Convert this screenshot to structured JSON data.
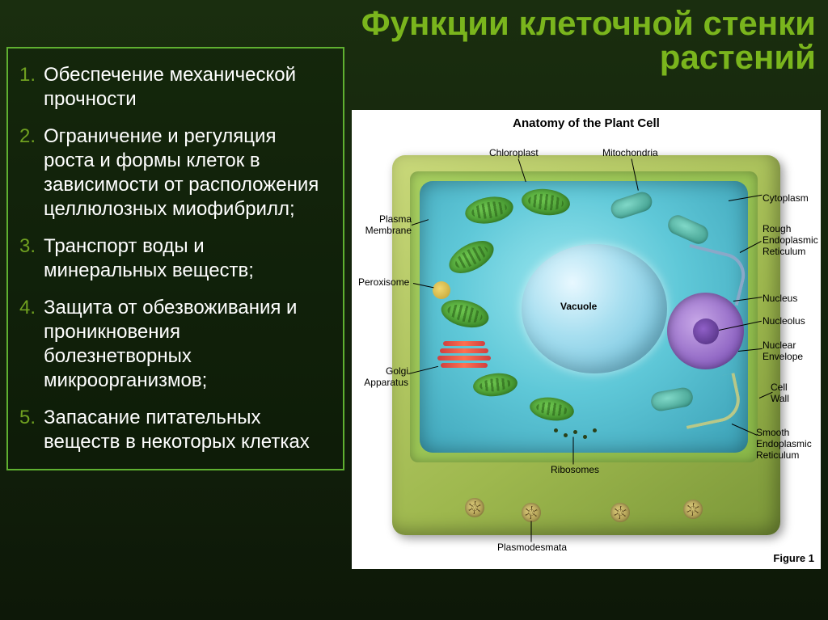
{
  "title": {
    "line1": "Функции клеточной стенки",
    "line2": "растений"
  },
  "list": [
    {
      "num": "1.",
      "text": "Обеспечение механической прочности"
    },
    {
      "num": "2.",
      "text": "Ограничение и регуляция роста и формы клеток в зависимости от расположения целлюлозных миофибрилл;"
    },
    {
      "num": "3.",
      "text": "Транспорт воды и минеральных веществ;"
    },
    {
      "num": "4.",
      "text": "Защита от обезвоживания и проникновения болезнетворных микроорганизмов;"
    },
    {
      "num": "5.",
      "text": "Запасание питательных веществ в некоторых клетках"
    }
  ],
  "diagram": {
    "title": "Anatomy of the Plant Cell",
    "figure_label": "Figure 1",
    "labels": {
      "chloroplast": "Chloroplast",
      "mitochondria": "Mitochondria",
      "plasma_membrane": "Plasma\nMembrane",
      "peroxisome": "Peroxisome",
      "golgi": "Golgi\nApparatus",
      "vacuole": "Vacuole",
      "ribosomes": "Ribosomes",
      "plasmodesmata": "Plasmodesmata",
      "cytoplasm": "Cytoplasm",
      "rough_er": "Rough\nEndoplasmic\nReticulum",
      "nucleus": "Nucleus",
      "nucleolus": "Nucleolus",
      "nuclear_envelope": "Nuclear\nEnvelope",
      "cell_wall": "Cell\nWall",
      "smooth_er": "Smooth\nEndoplasmic\nReticulum"
    },
    "colors": {
      "title_accent": "#7ab51d",
      "list_border": "#5fb030",
      "list_number": "#6fa020",
      "text": "#ffffff",
      "bg_top": "#1a2e0f",
      "bg_bottom": "#0d1808",
      "cell_wall": "#9eb84e",
      "membrane": "#5fc8d8",
      "vacuole": "#a8dff0",
      "nucleus": "#8a5fc0",
      "nucleolus": "#4a2a78",
      "chloroplast": "#3a8a28",
      "mitochondria": "#3a9888",
      "golgi": "#ff7050",
      "peroxisome": "#c0a030",
      "diagram_bg": "#ffffff"
    }
  }
}
